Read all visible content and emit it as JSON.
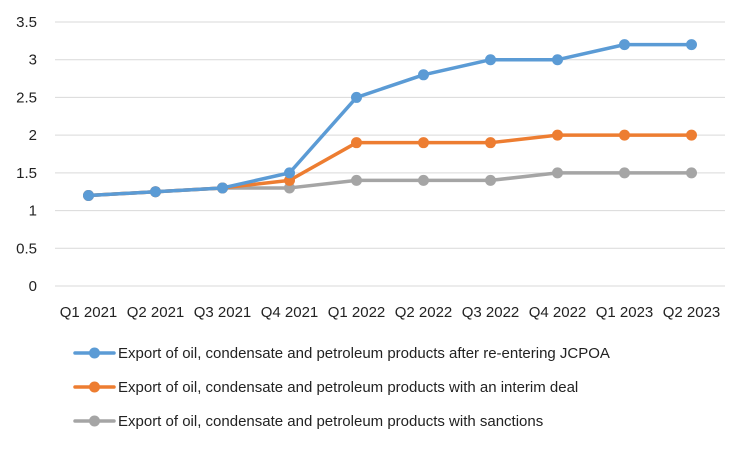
{
  "chart_data": {
    "type": "line",
    "categories": [
      "Q1 2021",
      "Q2 2021",
      "Q3 2021",
      "Q4 2021",
      "Q1 2022",
      "Q2 2022",
      "Q3 2022",
      "Q4 2022",
      "Q1 2023",
      "Q2 2023"
    ],
    "series": [
      {
        "name": "Export of oil, condensate and petroleum products after re-entering JCPOA",
        "color": "#5b9bd5",
        "values": [
          1.2,
          1.25,
          1.3,
          1.5,
          2.5,
          2.8,
          3.0,
          3.0,
          3.2,
          3.2
        ]
      },
      {
        "name": "Export of oil, condensate and petroleum products with an interim deal",
        "color": "#ed7d31",
        "values": [
          1.2,
          1.25,
          1.3,
          1.4,
          1.9,
          1.9,
          1.9,
          2.0,
          2.0,
          2.0
        ]
      },
      {
        "name": "Export of oil, condensate and petroleum products with sanctions",
        "color": "#a5a5a5",
        "values": [
          1.2,
          1.25,
          1.3,
          1.3,
          1.4,
          1.4,
          1.4,
          1.5,
          1.5,
          1.5
        ]
      }
    ],
    "y_ticks": [
      "0",
      "0.5",
      "1",
      "1.5",
      "2",
      "2.5",
      "3",
      "3.5"
    ],
    "ylim": [
      0,
      3.5
    ],
    "grid": true,
    "legend_position": "bottom",
    "title": "",
    "xlabel": "",
    "ylabel": ""
  }
}
